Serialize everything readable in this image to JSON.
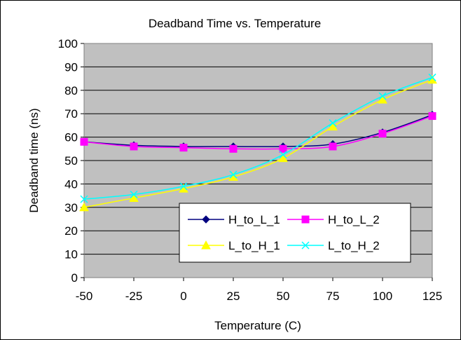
{
  "chart_data": {
    "type": "line",
    "title": "Deadband Time vs. Temperature",
    "xlabel": "Temperature (C)",
    "ylabel": "Deadband time (ns)",
    "x": [
      -50,
      -25,
      0,
      25,
      50,
      75,
      100,
      125
    ],
    "x_tick_labels": [
      "-50",
      "-25",
      "0",
      "25",
      "50",
      "75",
      "100",
      "125"
    ],
    "y_tick_labels": [
      "0",
      "10",
      "20",
      "30",
      "40",
      "50",
      "60",
      "70",
      "80",
      "90",
      "100"
    ],
    "xlim": [
      -50,
      125
    ],
    "ylim": [
      0,
      100
    ],
    "grid": "horizontal",
    "plot_background": "#c0c0c0",
    "legend_position": "bottom-right",
    "series": [
      {
        "name": "H_to_L_1",
        "color": "#000080",
        "marker": "diamond",
        "values": [
          58,
          56.5,
          56,
          56,
          56,
          57,
          62,
          69.5
        ]
      },
      {
        "name": "H_to_L_2",
        "color": "#ff00ff",
        "marker": "square",
        "values": [
          58,
          56,
          55.5,
          55,
          55,
          56,
          61.5,
          69
        ]
      },
      {
        "name": "L_to_H_1",
        "color": "#ffff00",
        "marker": "triangle",
        "values": [
          30,
          34,
          38,
          43,
          51,
          64.5,
          76,
          84.5
        ]
      },
      {
        "name": "L_to_H_2",
        "color": "#00ffff",
        "marker": "x",
        "values": [
          33.5,
          35.5,
          39,
          44,
          52.5,
          66,
          77.5,
          85.5
        ]
      }
    ]
  }
}
